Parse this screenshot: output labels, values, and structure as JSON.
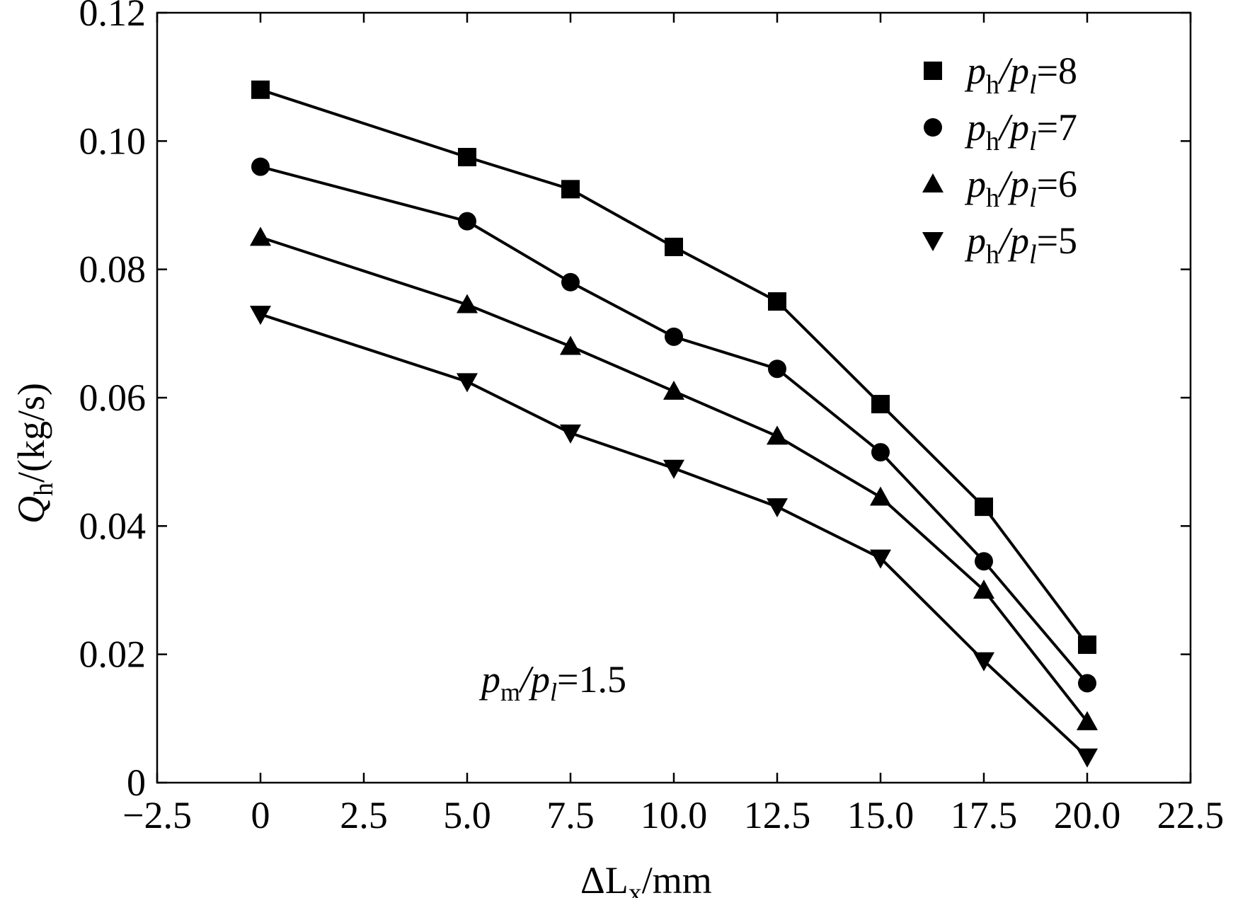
{
  "chart_data": {
    "type": "line",
    "xlabel": {
      "prefix": "ΔL",
      "sub": "x",
      "suffix": "/mm"
    },
    "ylabel": {
      "main": "Q",
      "sub": "h",
      "suffix": "/(kg/s)"
    },
    "xlim": [
      -2.5,
      22.5
    ],
    "ylim": [
      0,
      0.12
    ],
    "x_ticks": [
      -2.5,
      0,
      2.5,
      5.0,
      7.5,
      10.0,
      12.5,
      15.0,
      17.5,
      20.0,
      22.5
    ],
    "x_tick_labels": [
      "−2.5",
      "0",
      "2.5",
      "5.0",
      "7.5",
      "10.0",
      "12.5",
      "15.0",
      "17.5",
      "20.0",
      "22.5"
    ],
    "y_ticks": [
      0,
      0.02,
      0.04,
      0.06,
      0.08,
      0.1,
      0.12
    ],
    "y_tick_labels": [
      "0",
      "0.02",
      "0.04",
      "0.06",
      "0.08",
      "0.10",
      "0.12"
    ],
    "grid": false,
    "legend_position": "top-right",
    "x": [
      0,
      5.0,
      7.5,
      10.0,
      12.5,
      15.0,
      17.5,
      20.0
    ],
    "series": [
      {
        "name": "ph/pl=8",
        "label": {
          "a": "p",
          "asub": "h",
          "b": "/p",
          "bsub": "l",
          "value": "=8"
        },
        "marker": "square",
        "values": [
          0.108,
          0.0975,
          0.0925,
          0.0835,
          0.075,
          0.059,
          0.043,
          0.0215
        ]
      },
      {
        "name": "ph/pl=7",
        "label": {
          "a": "p",
          "asub": "h",
          "b": "/p",
          "bsub": "l",
          "value": "=7"
        },
        "marker": "circle",
        "values": [
          0.096,
          0.0875,
          0.078,
          0.0695,
          0.0645,
          0.0515,
          0.0345,
          0.0155
        ]
      },
      {
        "name": "ph/pl=6",
        "label": {
          "a": "p",
          "asub": "h",
          "b": "/p",
          "bsub": "l",
          "value": "=6"
        },
        "marker": "triangle-up",
        "values": [
          0.085,
          0.0745,
          0.068,
          0.061,
          0.054,
          0.0445,
          0.03,
          0.0095
        ]
      },
      {
        "name": "ph/pl=5",
        "label": {
          "a": "p",
          "asub": "h",
          "b": "/p",
          "bsub": "l",
          "value": "=5"
        },
        "marker": "triangle-down",
        "values": [
          0.073,
          0.0625,
          0.0545,
          0.049,
          0.043,
          0.035,
          0.019,
          0.004
        ]
      }
    ],
    "annotation": {
      "a": "p",
      "asub": "m",
      "b": "/p",
      "bsub": "l",
      "value": "=1.5"
    },
    "colors": {
      "line": "#000000",
      "marker": "#000000"
    }
  }
}
